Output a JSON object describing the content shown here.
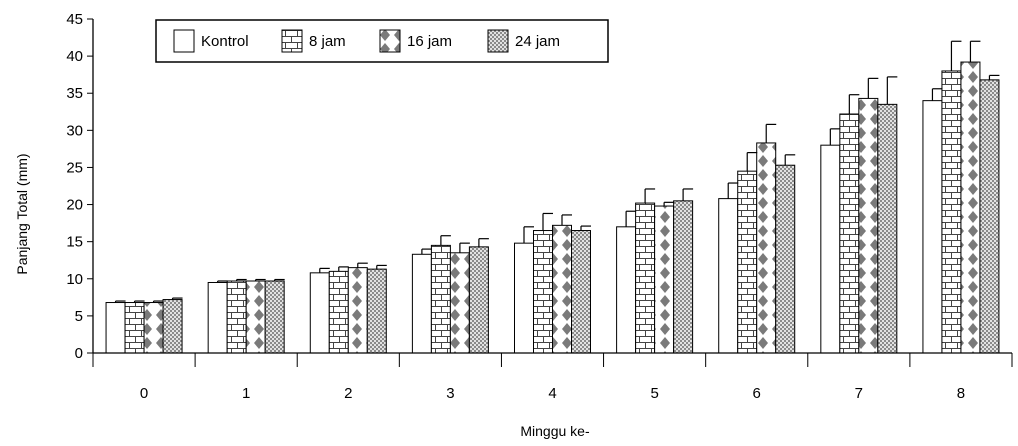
{
  "chart_data": {
    "type": "bar",
    "title": "",
    "xlabel": "Minggu ke-",
    "ylabel": "Panjang Total (mm)",
    "ylim": [
      0,
      45
    ],
    "yticks": [
      0,
      5,
      10,
      15,
      20,
      25,
      30,
      35,
      40,
      45
    ],
    "categories": [
      "0",
      "1",
      "2",
      "3",
      "4",
      "5",
      "6",
      "7",
      "8"
    ],
    "legend_position": "top-left",
    "grid": false,
    "series": [
      {
        "name": "Kontrol",
        "pattern": "plain",
        "values": [
          6.8,
          9.5,
          10.8,
          13.3,
          14.8,
          17.0,
          20.8,
          28.0,
          34.0
        ],
        "errors": [
          0.2,
          0.2,
          0.6,
          0.7,
          2.2,
          2.1,
          2.1,
          2.2,
          1.6
        ]
      },
      {
        "name": "8 jam",
        "pattern": "brick",
        "values": [
          6.8,
          9.7,
          11.0,
          14.5,
          16.5,
          20.2,
          24.5,
          32.2,
          38.0
        ],
        "errors": [
          0.2,
          0.2,
          0.6,
          1.3,
          2.3,
          1.9,
          2.5,
          2.6,
          4.0
        ]
      },
      {
        "name": "16 jam",
        "pattern": "diamond",
        "values": [
          6.8,
          9.7,
          11.5,
          13.5,
          17.2,
          19.8,
          28.3,
          34.3,
          39.2
        ],
        "errors": [
          0.2,
          0.2,
          0.6,
          1.3,
          1.4,
          0.5,
          2.5,
          2.7,
          2.8
        ]
      },
      {
        "name": "24 jam",
        "pattern": "checker",
        "values": [
          7.2,
          9.7,
          11.3,
          14.3,
          16.5,
          20.5,
          25.3,
          33.5,
          36.8
        ],
        "errors": [
          0.2,
          0.2,
          0.5,
          1.1,
          0.6,
          1.6,
          1.4,
          3.7,
          0.6
        ]
      }
    ]
  }
}
